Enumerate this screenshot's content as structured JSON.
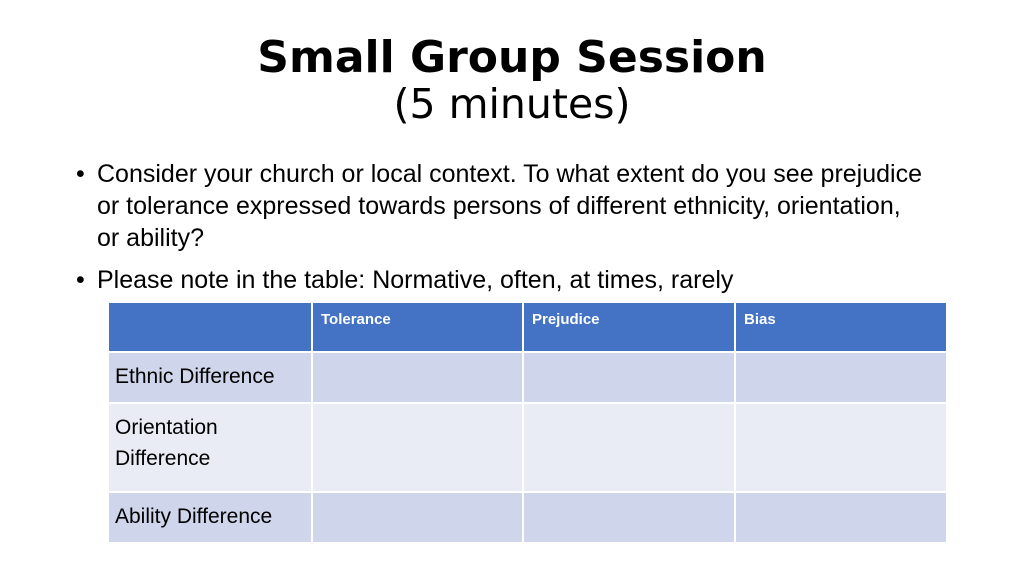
{
  "slide": {
    "title_main": "Small Group Session",
    "title_sub": "(5 minutes)",
    "bullets": [
      "Consider your church or local context. To what extent do you see prejudice or tolerance expressed towards persons of different ethnicity, orientation, or ability?",
      "Please note in the table: Normative, often, at times, rarely"
    ],
    "bullet_symbol": "•",
    "table": {
      "headers": [
        "",
        "Tolerance",
        "Prejudice",
        "Bias"
      ],
      "rows": [
        [
          "Ethnic Difference",
          "",
          "",
          ""
        ],
        [
          "Orientation Difference",
          "",
          "",
          ""
        ],
        [
          "Ability Difference",
          "",
          "",
          ""
        ]
      ],
      "header_color": "#4472c4",
      "band_dark_color": "#cfd5ea",
      "band_light_color": "#e9ebf5"
    }
  }
}
